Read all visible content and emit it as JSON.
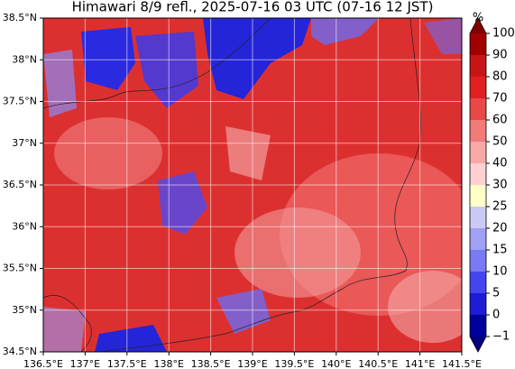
{
  "map": {
    "title": "Himawari 8/9 refl., 2025-07-16 03 UTC (07-16 12 JST)",
    "lonlim": [
      136.5,
      141.5
    ],
    "latlim": [
      34.5,
      38.5
    ],
    "lon_ticks": [
      {
        "value": 136.5,
        "label": "136.5°E"
      },
      {
        "value": 137,
        "label": "137°E"
      },
      {
        "value": 137.5,
        "label": "137.5°E"
      },
      {
        "value": 138,
        "label": "138°E"
      },
      {
        "value": 138.5,
        "label": "138.5°E"
      },
      {
        "value": 139,
        "label": "139°E"
      },
      {
        "value": 139.5,
        "label": "139.5°E"
      },
      {
        "value": 140,
        "label": "140°E"
      },
      {
        "value": 140.5,
        "label": "140.5°E"
      },
      {
        "value": 141,
        "label": "141°E"
      },
      {
        "value": 141.5,
        "label": "141.5°E"
      }
    ],
    "lat_ticks": [
      {
        "value": 34.5,
        "label": "34.5°N"
      },
      {
        "value": 35,
        "label": "35°N"
      },
      {
        "value": 35.5,
        "label": "35.5°N"
      },
      {
        "value": 36,
        "label": "36°N"
      },
      {
        "value": 36.5,
        "label": "36.5°N"
      },
      {
        "value": 37,
        "label": "37°N"
      },
      {
        "value": 37.5,
        "label": "37.5°N"
      },
      {
        "value": 38,
        "label": "38°N"
      },
      {
        "value": 38.5,
        "label": "38.5°N"
      }
    ],
    "colorbar": {
      "unit": "%",
      "levels": [
        {
          "value": -1,
          "label": "−1"
        },
        0,
        5,
        10,
        15,
        20,
        25,
        30,
        40,
        50,
        60,
        70,
        80,
        90,
        100
      ],
      "colors": [
        "#00009a",
        "#1c1cd6",
        "#4545f0",
        "#7a7af5",
        "#a0a0f5",
        "#cacaf5",
        "#ffffc8",
        "#ffd0d0",
        "#f8a8a8",
        "#f27a7a",
        "#e84848",
        "#e02020",
        "#c81414",
        "#a00000"
      ],
      "under_color": "#000080",
      "over_color": "#800000"
    }
  }
}
